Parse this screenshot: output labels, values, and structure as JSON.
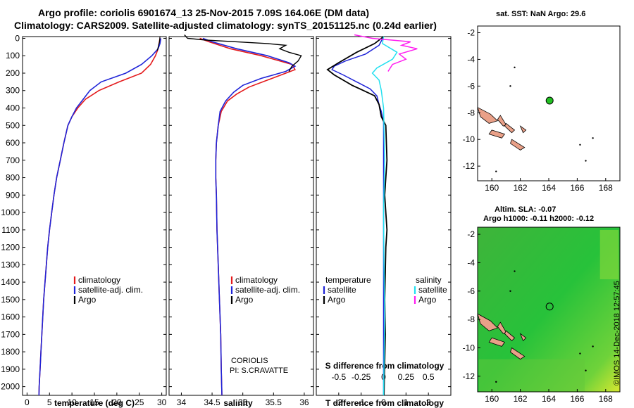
{
  "header": {
    "line1": "Argo profile: coriolis 6901674_13 25-Nov-2015 7.09S 164.06E (DM data)",
    "line2": "Climatology: CARS2009. Satellite-adjusted climatology: synTS_20151125.nc (0.24d earlier)"
  },
  "colors": {
    "climatology": "#e41a1c",
    "satellite": "#1f24d8",
    "argo": "#000000",
    "sat_salinity": "#22e0f0",
    "argo_salinity": "#ff1cf0",
    "marker": "#22c022",
    "land": "#e9a088"
  },
  "chart_data": [
    {
      "type": "line",
      "id": "temperature",
      "xlabel": "temperature (deg C)",
      "xlim": [
        -1,
        31
      ],
      "xticks": [
        "0",
        "5",
        "10",
        "15",
        "20",
        "25",
        "30"
      ],
      "ylim": [
        2050,
        -10
      ],
      "yticks": [
        "0",
        "100",
        "200",
        "300",
        "400",
        "500",
        "600",
        "700",
        "800",
        "900",
        "1000",
        "1100",
        "1200",
        "1300",
        "1400",
        "1500",
        "1600",
        "1700",
        "1800",
        "1900",
        "2000"
      ],
      "legend": [
        "climatology",
        "satellite-adj. clim.",
        "Argo"
      ],
      "series": [
        {
          "name": "climatology",
          "points": [
            [
              29.6,
              0
            ],
            [
              29.4,
              30
            ],
            [
              29.2,
              60
            ],
            [
              28.6,
              100
            ],
            [
              27.5,
              150
            ],
            [
              25.5,
              200
            ],
            [
              20.5,
              250
            ],
            [
              16,
              300
            ],
            [
              13,
              350
            ],
            [
              11.3,
              400
            ],
            [
              10,
              450
            ],
            [
              9.1,
              500
            ],
            [
              8.2,
              600
            ],
            [
              7.4,
              700
            ],
            [
              6.6,
              800
            ],
            [
              6,
              900
            ],
            [
              5.5,
              1000
            ],
            [
              5,
              1100
            ],
            [
              4.6,
              1200
            ],
            [
              4.3,
              1300
            ],
            [
              4,
              1400
            ],
            [
              3.7,
              1500
            ],
            [
              3.5,
              1600
            ],
            [
              3.3,
              1700
            ],
            [
              3.1,
              1800
            ],
            [
              2.9,
              1900
            ],
            [
              2.7,
              2000
            ],
            [
              2.65,
              2050
            ]
          ]
        },
        {
          "name": "satellite-adj. clim.",
          "points": [
            [
              29.8,
              0
            ],
            [
              29.6,
              30
            ],
            [
              29.2,
              60
            ],
            [
              27.8,
              100
            ],
            [
              25.5,
              150
            ],
            [
              22,
              200
            ],
            [
              16.5,
              250
            ],
            [
              14,
              300
            ],
            [
              12.5,
              350
            ],
            [
              11,
              400
            ],
            [
              10,
              450
            ],
            [
              9.1,
              500
            ],
            [
              8.2,
              600
            ],
            [
              7.4,
              700
            ],
            [
              6.6,
              800
            ],
            [
              6,
              900
            ],
            [
              5.5,
              1000
            ],
            [
              5,
              1100
            ],
            [
              4.6,
              1200
            ],
            [
              4.3,
              1300
            ],
            [
              4,
              1400
            ],
            [
              3.7,
              1500
            ],
            [
              3.5,
              1600
            ],
            [
              3.3,
              1700
            ],
            [
              3.1,
              1800
            ],
            [
              2.9,
              1900
            ],
            [
              2.7,
              2000
            ],
            [
              2.65,
              2050
            ]
          ]
        }
      ]
    },
    {
      "type": "line",
      "id": "salinity",
      "xlabel": "salinity",
      "xlim": [
        33.8,
        36.15
      ],
      "xticks": [
        "34",
        "34.5",
        "35",
        "35.5",
        "36"
      ],
      "legend": [
        "climatology",
        "satellite-adj. clim.",
        "Argo"
      ],
      "annotation": [
        "CORIOLIS",
        "PI: S.CRAVATTE"
      ],
      "series": [
        {
          "name": "climatology",
          "points": [
            [
              34.3,
              0
            ],
            [
              34.45,
              20
            ],
            [
              34.8,
              60
            ],
            [
              35.3,
              100
            ],
            [
              35.8,
              150
            ],
            [
              35.85,
              180
            ],
            [
              35.7,
              200
            ],
            [
              35.4,
              240
            ],
            [
              35.1,
              280
            ],
            [
              34.9,
              320
            ],
            [
              34.75,
              360
            ],
            [
              34.65,
              420
            ],
            [
              34.6,
              500
            ],
            [
              34.57,
              600
            ],
            [
              34.56,
              700
            ],
            [
              34.56,
              800
            ],
            [
              34.57,
              900
            ],
            [
              34.58,
              1100
            ],
            [
              34.6,
              1300
            ],
            [
              34.62,
              1500
            ],
            [
              34.64,
              1700
            ],
            [
              34.65,
              1900
            ],
            [
              34.66,
              2050
            ]
          ]
        },
        {
          "name": "satellite-adj. clim.",
          "points": [
            [
              34.35,
              0
            ],
            [
              34.5,
              20
            ],
            [
              34.9,
              60
            ],
            [
              35.4,
              100
            ],
            [
              35.75,
              140
            ],
            [
              35.85,
              160
            ],
            [
              35.7,
              190
            ],
            [
              35.3,
              230
            ],
            [
              35,
              270
            ],
            [
              34.85,
              310
            ],
            [
              34.72,
              360
            ],
            [
              34.63,
              420
            ],
            [
              34.6,
              500
            ],
            [
              34.57,
              600
            ],
            [
              34.56,
              700
            ],
            [
              34.56,
              800
            ],
            [
              34.57,
              900
            ],
            [
              34.58,
              1100
            ],
            [
              34.6,
              1300
            ],
            [
              34.62,
              1500
            ],
            [
              34.64,
              1700
            ],
            [
              34.65,
              1900
            ],
            [
              34.66,
              2050
            ]
          ]
        },
        {
          "name": "Argo",
          "points": [
            [
              34.05,
              -20
            ],
            [
              34.1,
              0
            ],
            [
              34.4,
              10
            ],
            [
              34.9,
              20
            ],
            [
              35.4,
              30
            ],
            [
              35.7,
              40
            ],
            [
              35.6,
              60
            ],
            [
              35.75,
              80
            ],
            [
              35.95,
              100
            ],
            [
              35.9,
              130
            ],
            [
              35.8,
              160
            ],
            [
              35.75,
              190
            ]
          ]
        }
      ]
    },
    {
      "type": "line",
      "id": "difference",
      "xlabel": "T difference from climatology",
      "xlabel2": "S difference from climatology",
      "xlim": [
        -3,
        3
      ],
      "xticks": [
        "-2",
        "-1",
        "0",
        "1",
        "2"
      ],
      "xticks2": [
        "-0.5",
        "-0.25",
        "0",
        "0.25",
        "0.5"
      ],
      "legend_left_title": "temperature",
      "legend_right_title": "salinity",
      "legend_left": [
        "satellite",
        "Argo"
      ],
      "legend_right": [
        "satellite",
        "Argo"
      ],
      "series": [
        {
          "name": "T satellite",
          "color": "satellite",
          "points": [
            [
              0,
              -10
            ],
            [
              -0.2,
              40
            ],
            [
              -0.8,
              90
            ],
            [
              -1.7,
              130
            ],
            [
              -2.2,
              160
            ],
            [
              -2.3,
              180
            ],
            [
              -1.8,
              210
            ],
            [
              -1.2,
              250
            ],
            [
              -0.6,
              290
            ],
            [
              -0.3,
              330
            ],
            [
              -0.2,
              380
            ],
            [
              -0.1,
              420
            ],
            [
              0,
              480
            ],
            [
              0,
              2050
            ]
          ]
        },
        {
          "name": "T Argo",
          "color": "argo",
          "points": [
            [
              0,
              -10
            ],
            [
              -0.4,
              30
            ],
            [
              -1.2,
              80
            ],
            [
              -2,
              140
            ],
            [
              -2.5,
              180
            ],
            [
              -2.2,
              210
            ],
            [
              -1.8,
              240
            ],
            [
              -1.4,
              270
            ],
            [
              -0.9,
              300
            ],
            [
              -0.4,
              330
            ],
            [
              -0.2,
              380
            ],
            [
              -0.1,
              450
            ],
            [
              0.1,
              500
            ],
            [
              0.15,
              700
            ],
            [
              0.05,
              900
            ],
            [
              0.15,
              1100
            ],
            [
              0.1,
              1200
            ],
            [
              0.05,
              1500
            ],
            [
              0.08,
              1700
            ],
            [
              0.04,
              1900
            ],
            [
              0.02,
              2050
            ]
          ]
        },
        {
          "name": "S satellite",
          "color": "sat_salinity",
          "points": [
            [
              0,
              -10
            ],
            [
              -0.05,
              30
            ],
            [
              0.6,
              80
            ],
            [
              0.4,
              120
            ],
            [
              -0.3,
              170
            ],
            [
              -0.5,
              200
            ],
            [
              -0.2,
              240
            ],
            [
              -0.1,
              300
            ],
            [
              0,
              400
            ],
            [
              0.05,
              700
            ],
            [
              0,
              1000
            ],
            [
              0.02,
              1300
            ],
            [
              0.05,
              1600
            ],
            [
              0,
              2050
            ]
          ]
        },
        {
          "name": "S Argo",
          "color": "argo_salinity",
          "points": [
            [
              -1.3,
              -20
            ],
            [
              -0.5,
              0
            ],
            [
              1.2,
              20
            ],
            [
              0.8,
              40
            ],
            [
              1.5,
              60
            ],
            [
              0.7,
              90
            ],
            [
              1,
              120
            ],
            [
              0.4,
              150
            ],
            [
              0.2,
              190
            ]
          ]
        }
      ]
    },
    {
      "type": "map",
      "id": "sst-map",
      "title": "sat. SST: NaN Argo: 29.6",
      "xticks": [
        "160",
        "162",
        "164",
        "166",
        "168"
      ],
      "yticks": [
        "-2",
        "-4",
        "-6",
        "-8",
        "-10",
        "-12"
      ],
      "marker": [
        164.06,
        -7.09
      ]
    },
    {
      "type": "map",
      "id": "sla-map",
      "title": "Altim. SLA: -0.07",
      "subtitle": "Argo h1000: -0.11 h2000: -0.12",
      "xticks": [
        "160",
        "162",
        "164",
        "166",
        "168"
      ],
      "yticks": [
        "-2",
        "-4",
        "-6",
        "-8",
        "-10",
        "-12"
      ],
      "marker": [
        164.06,
        -7.09
      ]
    }
  ],
  "stamp": "©IMOS 14-Dec-2018 12:57:45"
}
